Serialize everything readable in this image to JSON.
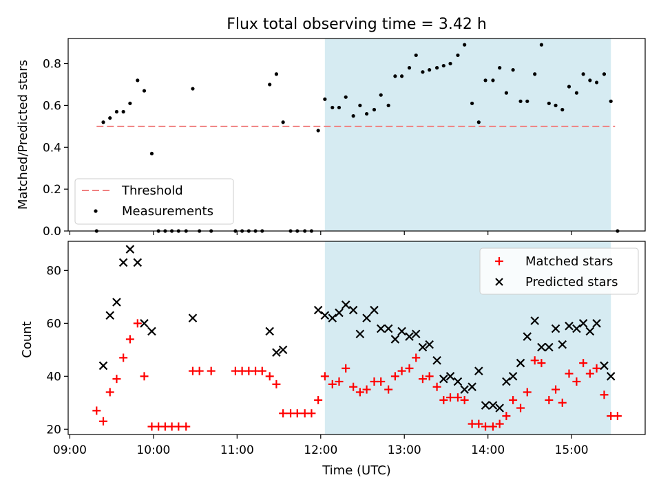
{
  "title": "Flux total observing time = 3.42 h",
  "x_label": "Time (UTC)",
  "x_ticks": [
    "09:00",
    "10:00",
    "11:00",
    "12:00",
    "13:00",
    "14:00",
    "15:00"
  ],
  "colors": {
    "highlight": "#add8e6",
    "threshold": "#f08080",
    "measurement": "#000000",
    "matched": "#ff0000",
    "predicted": "#000000"
  },
  "chart_data": [
    {
      "type": "scatter",
      "ylabel": "Matched/Predicted stars",
      "ylim": [
        0,
        0.92
      ],
      "yticks": [
        "0.0",
        "0.2",
        "0.4",
        "0.6",
        "0.8"
      ],
      "xlim_hours": [
        8.98,
        15.88
      ],
      "highlight_span_hours": [
        12.05,
        15.47
      ],
      "threshold": {
        "name": "Threshold",
        "value": 0.5,
        "x_range_hours": [
          9.32,
          15.52
        ]
      },
      "legend": {
        "position": "lower-left",
        "entries": [
          "Threshold",
          "Measurements"
        ]
      },
      "series": [
        {
          "name": "Measurements",
          "x_hours": [
            9.32,
            9.4,
            9.48,
            9.56,
            9.64,
            9.72,
            9.81,
            9.89,
            9.98,
            10.06,
            10.14,
            10.22,
            10.3,
            10.39,
            10.47,
            10.55,
            10.69,
            10.98,
            11.06,
            11.14,
            11.22,
            11.3,
            11.39,
            11.47,
            11.55,
            11.64,
            11.72,
            11.81,
            11.89,
            11.97,
            12.05,
            12.14,
            12.22,
            12.3,
            12.39,
            12.47,
            12.55,
            12.64,
            12.72,
            12.81,
            12.89,
            12.97,
            13.06,
            13.14,
            13.22,
            13.3,
            13.39,
            13.47,
            13.55,
            13.64,
            13.72,
            13.81,
            13.89,
            13.97,
            14.06,
            14.14,
            14.22,
            14.3,
            14.39,
            14.47,
            14.56,
            14.64,
            14.73,
            14.81,
            14.89,
            14.97,
            15.06,
            15.14,
            15.22,
            15.3,
            15.39,
            15.47,
            15.55
          ],
          "y": [
            0.0,
            0.52,
            0.54,
            0.57,
            0.57,
            0.61,
            0.72,
            0.67,
            0.37,
            0.0,
            0.0,
            0.0,
            0.0,
            0.0,
            0.68,
            0.0,
            0.0,
            0.0,
            0.0,
            0.0,
            0.0,
            0.0,
            0.7,
            0.75,
            0.52,
            0.0,
            0.0,
            0.0,
            0.0,
            0.48,
            0.63,
            0.59,
            0.59,
            0.64,
            0.55,
            0.6,
            0.56,
            0.58,
            0.65,
            0.6,
            0.74,
            0.74,
            0.78,
            0.84,
            0.76,
            0.77,
            0.78,
            0.79,
            0.8,
            0.84,
            0.89,
            0.61,
            0.52,
            0.72,
            0.72,
            0.78,
            0.66,
            0.77,
            0.62,
            0.62,
            0.75,
            0.89,
            0.61,
            0.6,
            0.58,
            0.69,
            0.66,
            0.75,
            0.72,
            0.71,
            0.75,
            0.62,
            0.0
          ]
        }
      ]
    },
    {
      "type": "scatter",
      "ylabel": "Count",
      "ylim": [
        18,
        91
      ],
      "yticks": [
        "20",
        "40",
        "60",
        "80"
      ],
      "xlim_hours": [
        8.98,
        15.88
      ],
      "highlight_span_hours": [
        12.05,
        15.47
      ],
      "legend": {
        "position": "top-right",
        "entries": [
          "Matched stars",
          "Predicted stars"
        ]
      },
      "series": [
        {
          "name": "Matched stars",
          "marker": "plus",
          "x_hours": [
            9.32,
            9.4,
            9.48,
            9.56,
            9.64,
            9.72,
            9.81,
            9.89,
            9.98,
            10.06,
            10.14,
            10.22,
            10.3,
            10.39,
            10.47,
            10.55,
            10.69,
            10.98,
            11.06,
            11.14,
            11.22,
            11.3,
            11.39,
            11.47,
            11.55,
            11.64,
            11.72,
            11.81,
            11.89,
            11.97,
            12.05,
            12.14,
            12.22,
            12.3,
            12.39,
            12.47,
            12.55,
            12.64,
            12.72,
            12.81,
            12.89,
            12.97,
            13.06,
            13.14,
            13.22,
            13.3,
            13.39,
            13.47,
            13.55,
            13.64,
            13.72,
            13.81,
            13.89,
            13.97,
            14.06,
            14.14,
            14.22,
            14.3,
            14.39,
            14.47,
            14.56,
            14.64,
            14.73,
            14.81,
            14.89,
            14.97,
            15.06,
            15.14,
            15.22,
            15.3,
            15.39,
            15.47,
            15.55
          ],
          "y": [
            27,
            23,
            34,
            39,
            47,
            54,
            60,
            40,
            21,
            21,
            21,
            21,
            21,
            21,
            42,
            42,
            42,
            42,
            42,
            42,
            42,
            42,
            40,
            37,
            26,
            26,
            26,
            26,
            26,
            31,
            40,
            37,
            38,
            43,
            36,
            34,
            35,
            38,
            38,
            35,
            40,
            42,
            43,
            47,
            39,
            40,
            36,
            31,
            32,
            32,
            31,
            22,
            22,
            21,
            21,
            22,
            25,
            31,
            28,
            34,
            46,
            45,
            31,
            35,
            30,
            41,
            38,
            45,
            41,
            43,
            33,
            25,
            25
          ]
        },
        {
          "name": "Predicted stars",
          "marker": "x",
          "x_hours": [
            9.4,
            9.48,
            9.56,
            9.64,
            9.72,
            9.81,
            9.89,
            9.98,
            10.47,
            11.39,
            11.47,
            11.55,
            11.97,
            12.05,
            12.14,
            12.22,
            12.3,
            12.39,
            12.47,
            12.55,
            12.64,
            12.72,
            12.81,
            12.89,
            12.97,
            13.06,
            13.14,
            13.22,
            13.3,
            13.39,
            13.47,
            13.55,
            13.64,
            13.72,
            13.81,
            13.89,
            13.97,
            14.06,
            14.14,
            14.22,
            14.3,
            14.39,
            14.47,
            14.56,
            14.64,
            14.73,
            14.81,
            14.89,
            14.97,
            15.06,
            15.14,
            15.22,
            15.3,
            15.39,
            15.47
          ],
          "y": [
            44,
            63,
            68,
            83,
            88,
            83,
            60,
            57,
            62,
            57,
            49,
            50,
            65,
            63,
            62,
            64,
            67,
            65,
            56,
            62,
            65,
            58,
            58,
            54,
            57,
            55,
            56,
            51,
            52,
            46,
            39,
            40,
            38,
            35,
            36,
            42,
            29,
            29,
            28,
            38,
            40,
            45,
            55,
            61,
            51,
            51,
            58,
            52,
            59,
            58,
            60,
            57,
            60,
            44,
            40
          ]
        }
      ]
    }
  ]
}
